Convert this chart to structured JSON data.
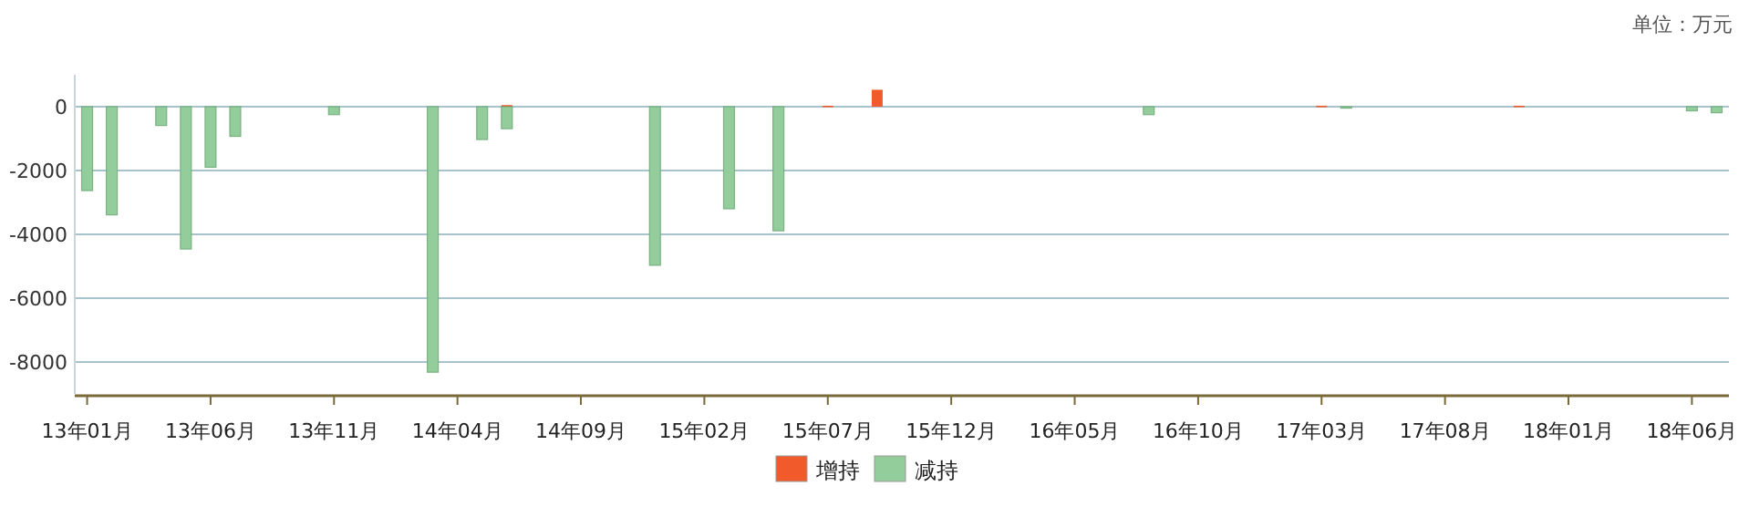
{
  "chart_data": {
    "type": "bar",
    "grid": "y",
    "legend": "bottom",
    "annotations": [
      "单位：万元"
    ],
    "categories": [
      "13年01月",
      null,
      null,
      null,
      null,
      "13年06月",
      null,
      null,
      null,
      null,
      "13年11月",
      null,
      null,
      null,
      null,
      "14年04月",
      null,
      null,
      null,
      null,
      "14年09月",
      null,
      null,
      null,
      null,
      "15年02月",
      null,
      null,
      null,
      null,
      "15年07月",
      null,
      null,
      null,
      null,
      "15年12月",
      null,
      null,
      null,
      null,
      "16年05月",
      null,
      null,
      null,
      null,
      "16年10月",
      null,
      null,
      null,
      null,
      "17年03月",
      null,
      null,
      null,
      null,
      "17年08月",
      null,
      null,
      null,
      null,
      "18年01月",
      null,
      null,
      null,
      null,
      "18年06月",
      null
    ],
    "ylim": [
      -9000,
      1000
    ],
    "yticks": [
      -8000,
      -6000,
      -4000,
      -2000,
      0
    ],
    "series": [
      {
        "name": "增持",
        "color": "#f15a2b",
        "values": [
          null,
          null,
          null,
          null,
          null,
          null,
          null,
          null,
          null,
          null,
          null,
          null,
          null,
          null,
          null,
          null,
          null,
          50,
          null,
          null,
          null,
          null,
          null,
          null,
          null,
          null,
          null,
          null,
          null,
          null,
          30,
          null,
          530,
          null,
          null,
          null,
          null,
          null,
          null,
          null,
          null,
          null,
          null,
          null,
          null,
          null,
          null,
          null,
          null,
          null,
          30,
          null,
          null,
          null,
          null,
          null,
          null,
          null,
          30,
          null,
          null,
          null,
          null,
          null,
          null,
          null,
          null
        ]
      },
      {
        "name": "减持",
        "color": "#93cd9b",
        "values": [
          -2630,
          -3390,
          null,
          -590,
          -4460,
          -1900,
          -930,
          null,
          null,
          null,
          -250,
          null,
          null,
          null,
          -8320,
          null,
          -1030,
          -690,
          null,
          null,
          null,
          null,
          null,
          -4970,
          null,
          null,
          -3200,
          null,
          -3890,
          null,
          null,
          null,
          null,
          null,
          null,
          null,
          null,
          null,
          null,
          null,
          null,
          null,
          null,
          -250,
          null,
          null,
          null,
          null,
          null,
          null,
          null,
          -30,
          null,
          null,
          null,
          null,
          null,
          null,
          null,
          null,
          null,
          null,
          null,
          null,
          null,
          -130,
          -190
        ]
      }
    ]
  }
}
